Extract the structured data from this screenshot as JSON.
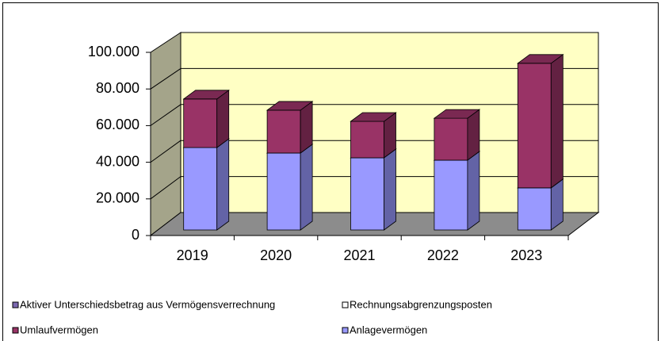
{
  "chart_data": {
    "type": "bar3d_stacked",
    "categories": [
      "2019",
      "2020",
      "2021",
      "2022",
      "2023"
    ],
    "series": [
      {
        "name": "Anlagevermögen",
        "color": "#9999ff",
        "values": [
          45000,
          42000,
          39400,
          38100,
          23000
        ]
      },
      {
        "name": "Umlaufvermögen",
        "color": "#993366",
        "values": [
          26500,
          23400,
          19900,
          22900,
          68000
        ]
      },
      {
        "name": "Rechnungsabgrenzungsposten",
        "color": "#ffffff",
        "values": [
          0,
          0,
          0,
          0,
          0
        ]
      },
      {
        "name": "Aktiver Unterschiedsbetrag aus Vermögensverrechnung",
        "color": "#7b68b0",
        "values": [
          0,
          0,
          0,
          0,
          0
        ]
      }
    ],
    "ylim": [
      0,
      100000
    ],
    "yticks": [
      0,
      {
        "value": 20000,
        "label": "20.000"
      },
      {
        "value": 40000,
        "label": "40.000"
      },
      {
        "value": 60000,
        "label": "60.000"
      },
      {
        "value": 80000,
        "label": "80.000"
      },
      {
        "value": 100000,
        "label": "100.000"
      }
    ],
    "grid": true
  }
}
